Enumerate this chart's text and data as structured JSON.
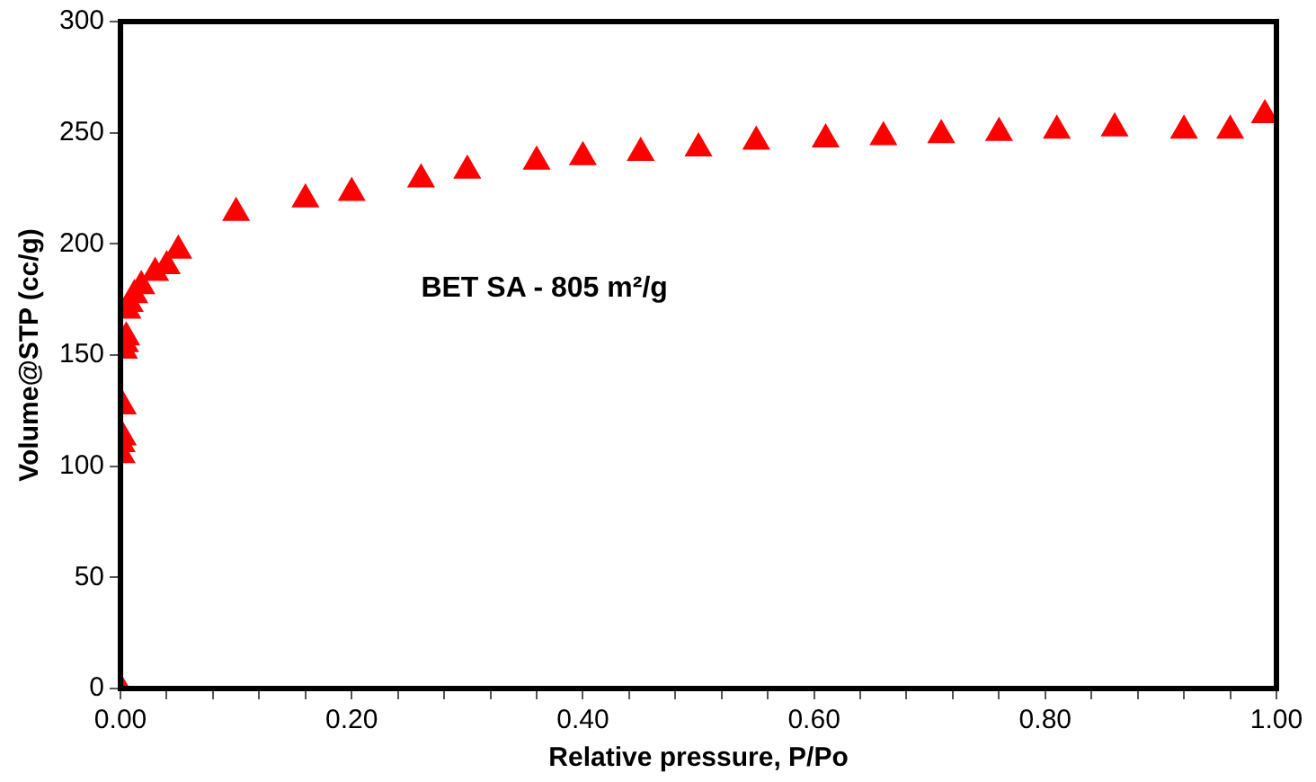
{
  "chart_data": {
    "type": "scatter",
    "xlabel": "Relative pressure, P/Po",
    "ylabel": "Volume@STP (cc/g)",
    "annotations": [
      "BET SA - 805 m²/g"
    ],
    "marker": "triangle",
    "grid": false,
    "legend": false,
    "xlim": [
      0,
      1
    ],
    "ylim": [
      0,
      300
    ],
    "xticks": [
      {
        "value": 0,
        "label": "0.00"
      },
      {
        "value": 0.04,
        "label": null
      },
      {
        "value": 0.08,
        "label": null
      },
      {
        "value": 0.12,
        "label": null
      },
      {
        "value": 0.16,
        "label": null
      },
      {
        "value": 0.2,
        "label": "0.20"
      },
      {
        "value": 0.24,
        "label": null
      },
      {
        "value": 0.28,
        "label": null
      },
      {
        "value": 0.32,
        "label": null
      },
      {
        "value": 0.36,
        "label": null
      },
      {
        "value": 0.4,
        "label": "0.40"
      },
      {
        "value": 0.44,
        "label": null
      },
      {
        "value": 0.48,
        "label": null
      },
      {
        "value": 0.52,
        "label": null
      },
      {
        "value": 0.56,
        "label": null
      },
      {
        "value": 0.6,
        "label": "0.60"
      },
      {
        "value": 0.64,
        "label": null
      },
      {
        "value": 0.68,
        "label": null
      },
      {
        "value": 0.72,
        "label": null
      },
      {
        "value": 0.76,
        "label": null
      },
      {
        "value": 0.8,
        "label": "0.80"
      },
      {
        "value": 0.84,
        "label": null
      },
      {
        "value": 0.88,
        "label": null
      },
      {
        "value": 0.92,
        "label": null
      },
      {
        "value": 0.96,
        "label": null
      },
      {
        "value": 1,
        "label": "1.00"
      }
    ],
    "yticks": [
      0,
      50,
      100,
      150,
      200,
      250,
      300
    ],
    "series": [
      {
        "color": "#ff0000",
        "x": [
          0,
          0.001,
          0.001,
          0.002,
          0.002,
          0.003,
          0.004,
          0.005,
          0.006,
          0.008,
          0.012,
          0.018,
          0.03,
          0.04,
          0.05,
          0.1,
          0.16,
          0.2,
          0.26,
          0.3,
          0.36,
          0.4,
          0.45,
          0.5,
          0.55,
          0.61,
          0.66,
          0.71,
          0.76,
          0.81,
          0.86,
          0.92,
          0.96,
          0.99
        ],
        "values": [
          0,
          105,
          110,
          113,
          127,
          152,
          155,
          158,
          170,
          173,
          177,
          181,
          187,
          190,
          197,
          214,
          220,
          223,
          229,
          233,
          237,
          239,
          241,
          243,
          246,
          247,
          248,
          249,
          250,
          251,
          252,
          251,
          251,
          258
        ]
      }
    ]
  }
}
